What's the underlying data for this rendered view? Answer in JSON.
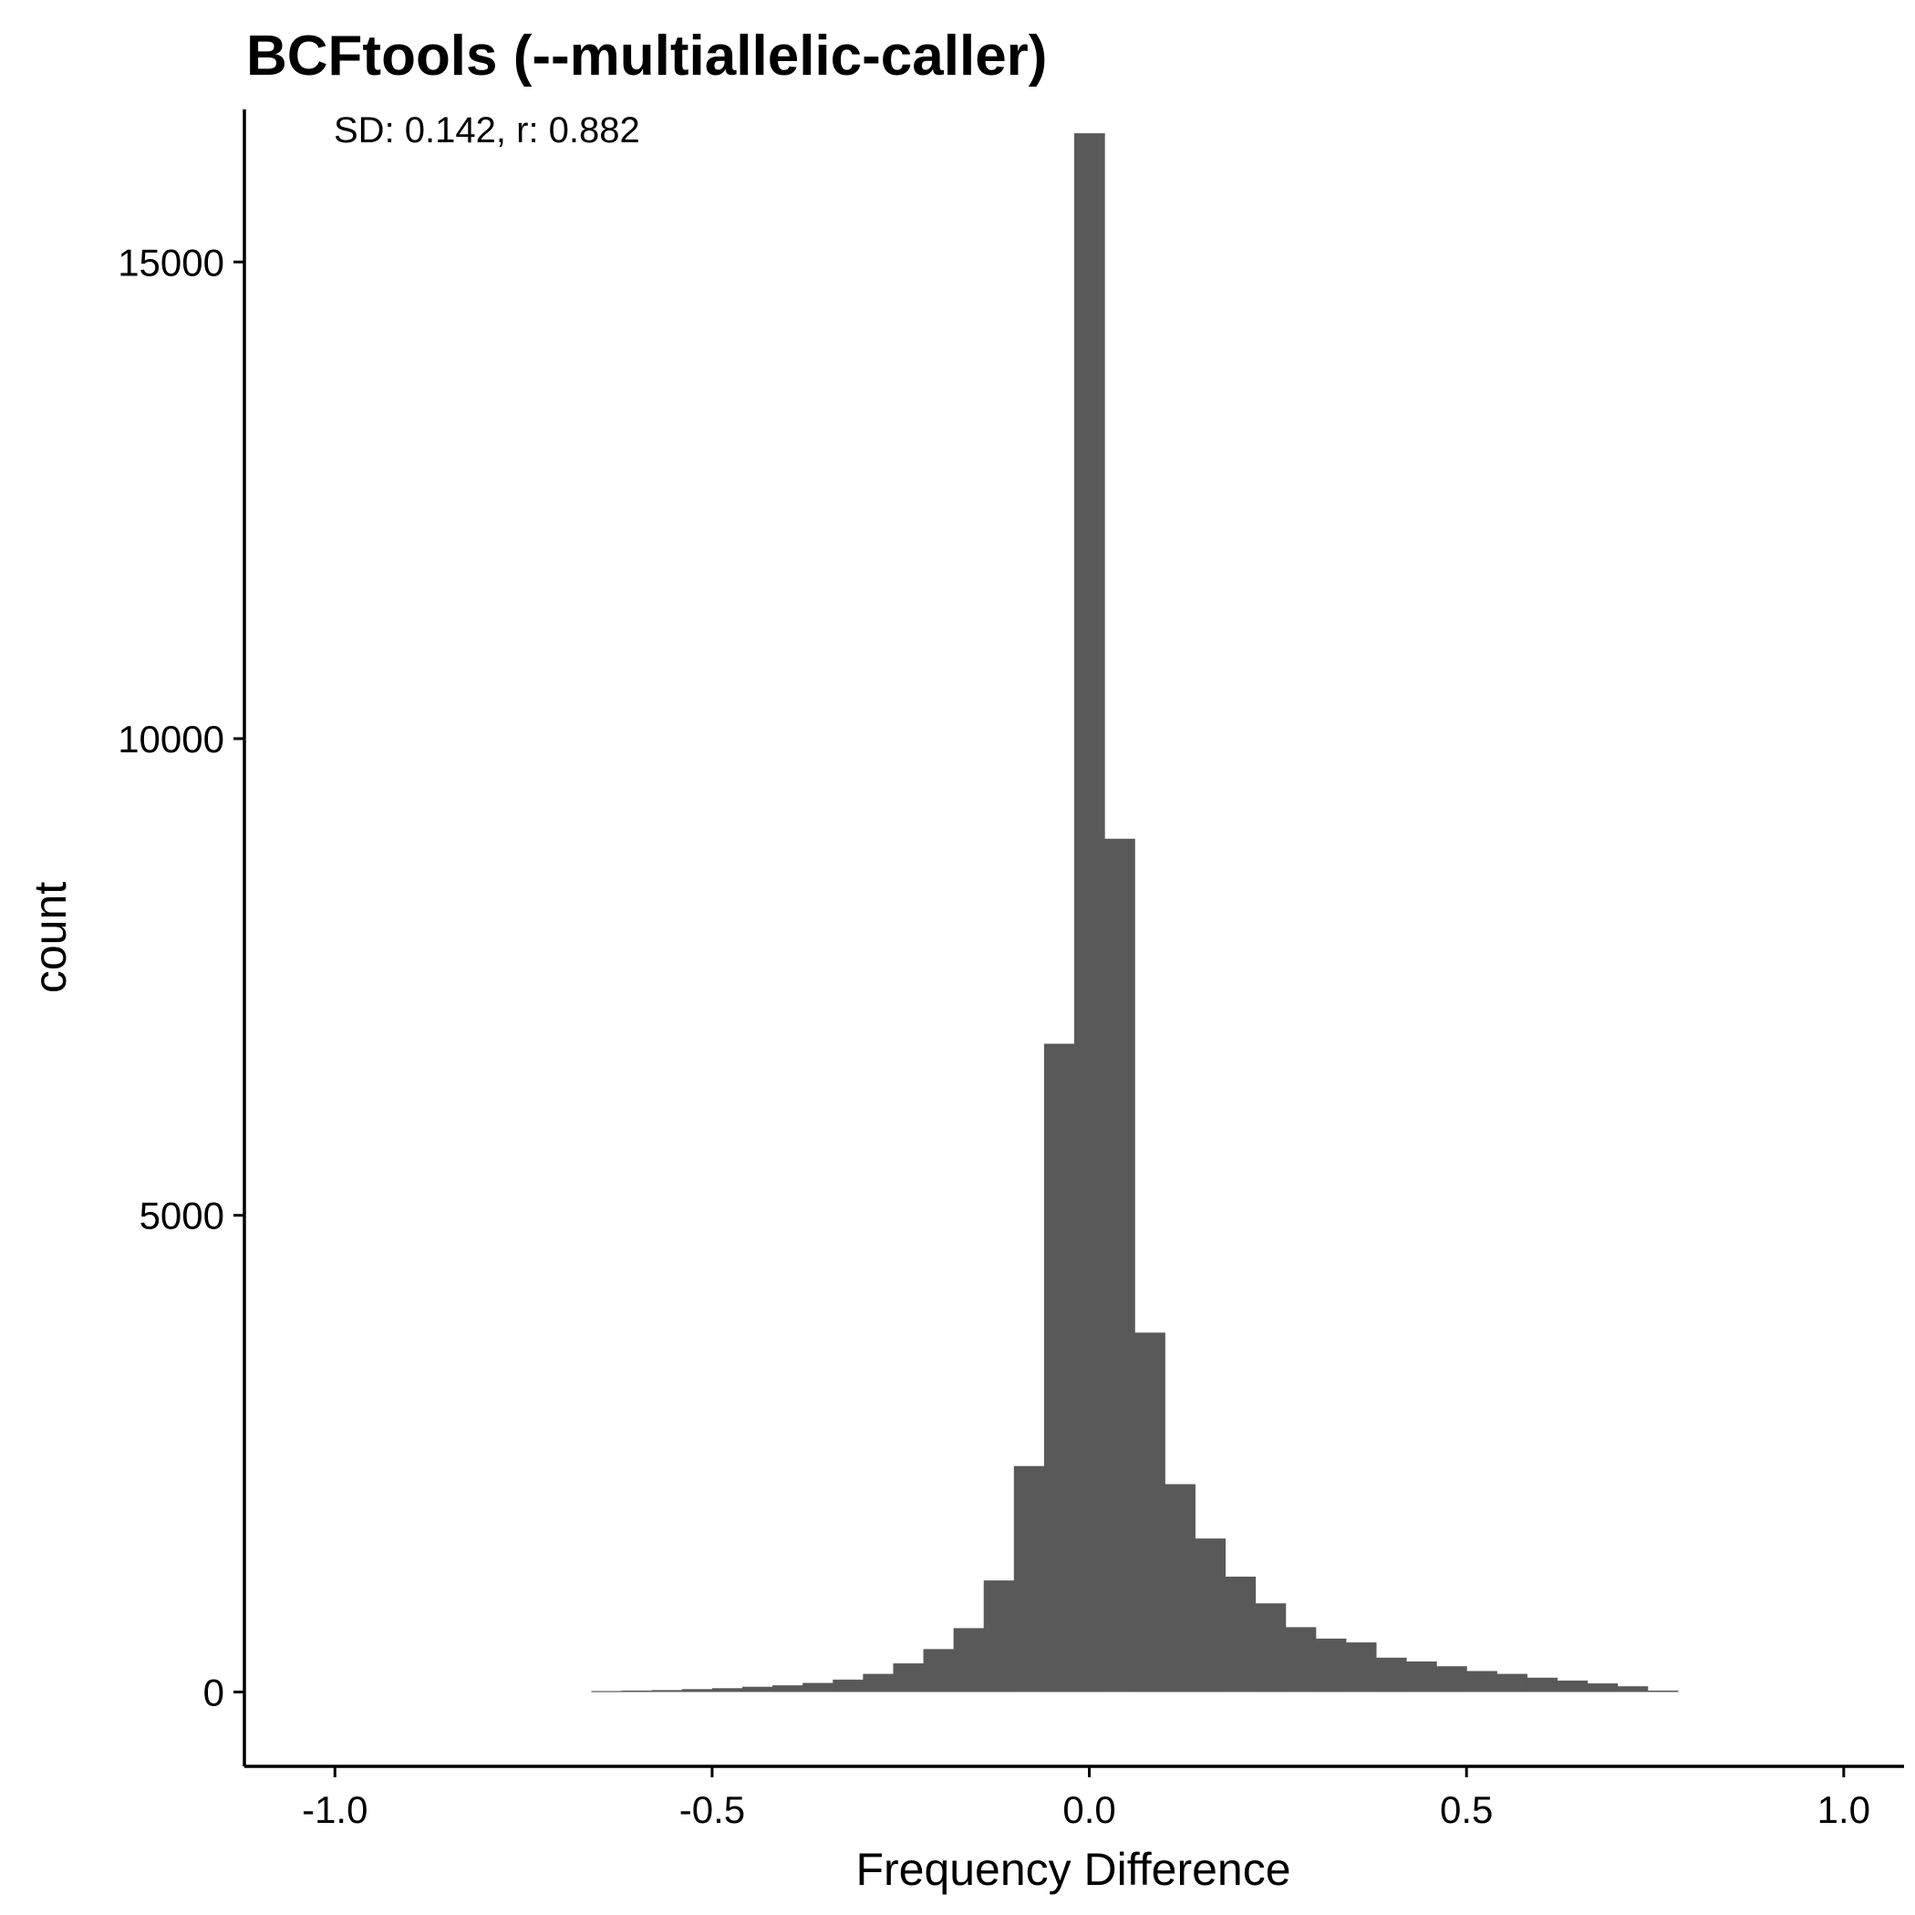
{
  "chart_data": {
    "type": "bar",
    "title": "BCFtools (--multiallelic-caller)",
    "annotation": "SD: 0.142, r: 0.882",
    "xlabel": "Frequency Difference",
    "ylabel": "count",
    "xlim": [
      -1.12,
      1.08
    ],
    "ylim": [
      -780,
      16600
    ],
    "x_ticks": [
      -1.0,
      -0.5,
      0.0,
      0.5,
      1.0
    ],
    "x_tick_labels": [
      "-1.0",
      "-0.5",
      "0.0",
      "0.5",
      "1.0"
    ],
    "y_ticks": [
      0,
      5000,
      10000,
      15000
    ],
    "y_tick_labels": [
      "0",
      "5000",
      "10000",
      "15000"
    ],
    "bin_width": 0.04,
    "bin_centers": [
      -0.64,
      -0.6,
      -0.56,
      -0.52,
      -0.48,
      -0.44,
      -0.4,
      -0.36,
      -0.32,
      -0.28,
      -0.24,
      -0.2,
      -0.16,
      -0.12,
      -0.08,
      -0.04,
      0.0,
      0.04,
      0.08,
      0.12,
      0.16,
      0.2,
      0.24,
      0.28,
      0.32,
      0.36,
      0.4,
      0.44,
      0.48,
      0.52,
      0.56,
      0.6,
      0.64,
      0.68,
      0.72,
      0.76
    ],
    "values": [
      10,
      15,
      20,
      30,
      40,
      55,
      70,
      95,
      130,
      190,
      300,
      450,
      670,
      1170,
      2370,
      6800,
      16350,
      8950,
      3770,
      2180,
      1610,
      1210,
      930,
      680,
      560,
      520,
      360,
      320,
      270,
      220,
      190,
      150,
      120,
      90,
      60,
      15
    ],
    "bar_color": "#595959",
    "grid": false
  }
}
